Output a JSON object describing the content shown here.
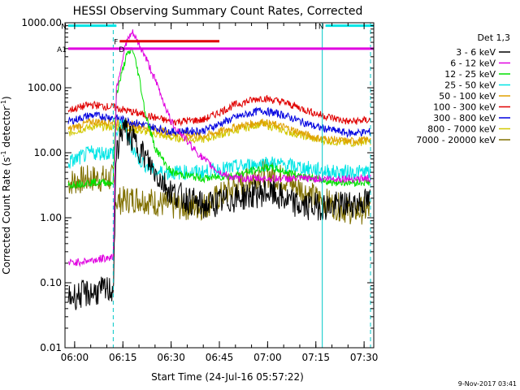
{
  "chart_data": {
    "type": "line",
    "title": "HESSI Observing Summary Count Rates, Corrected",
    "xlabel": "Start Time (24-Jul-16 05:57:22)",
    "ylabel_main": "Corrected Count Rate (s",
    "ylabel_sup": "-1",
    "ylabel_mid": " detector",
    "ylabel_end": ")",
    "yscale": "log",
    "ylim": [
      0.01,
      1000
    ],
    "xlim_minutes": [
      "05:57",
      "07:33"
    ],
    "x_ticks": [
      "06:00",
      "06:15",
      "06:30",
      "06:45",
      "07:00",
      "07:15",
      "07:30"
    ],
    "y_ticks": [
      "0.01",
      "0.10",
      "1.00",
      "10.00",
      "100.00",
      "1000.00"
    ],
    "grid": false,
    "legend_title": "Det 1,3",
    "legend_position": "right",
    "timestamp": "9-Nov-2017 03:41",
    "flags": [
      {
        "label": "N",
        "color": "#00e5e5",
        "start": "05:58",
        "end": "06:13",
        "level": 900
      },
      {
        "label": "N",
        "color": "#00e5e5",
        "start": "07:18",
        "end": "07:33",
        "level": 900
      },
      {
        "label": "F",
        "color": "#e00000",
        "start": "06:14",
        "end": "06:45",
        "level": 520
      },
      {
        "label": "A1",
        "color": "#e000e0",
        "start": "05:58",
        "end": "07:33",
        "level": 400
      },
      {
        "label": "D",
        "color": "#e000e0",
        "start": "06:16",
        "end": "06:18",
        "level": 400
      }
    ],
    "vlines": [
      {
        "time": "05:57",
        "color": "#00c8c8",
        "style": "dashed"
      },
      {
        "time": "06:12",
        "color": "#00c8c8",
        "style": "dashed"
      },
      {
        "time": "07:17",
        "color": "#00c8c8",
        "style": "solid"
      },
      {
        "time": "07:32",
        "color": "#00c8c8",
        "style": "dashed"
      }
    ],
    "series": [
      {
        "name": "3 - 6 keV",
        "color": "#000000",
        "x": [
          "05:58",
          "06:05",
          "06:12",
          "06:13",
          "06:15",
          "06:20",
          "06:25",
          "06:30",
          "06:40",
          "06:50",
          "07:00",
          "07:10",
          "07:20",
          "07:32"
        ],
        "y": [
          0.06,
          0.07,
          0.08,
          10,
          25,
          12,
          5,
          2.5,
          1.5,
          2,
          2.5,
          1.5,
          1.5,
          1.8
        ]
      },
      {
        "name": "6 - 12 keV",
        "color": "#e000e0",
        "x": [
          "05:58",
          "06:05",
          "06:12",
          "06:13",
          "06:16",
          "06:18",
          "06:22",
          "06:26",
          "06:30",
          "06:35",
          "06:40",
          "06:45",
          "06:50",
          "07:00",
          "07:10",
          "07:20",
          "07:32"
        ],
        "y": [
          0.2,
          0.22,
          0.25,
          100,
          500,
          700,
          300,
          100,
          30,
          15,
          8,
          5,
          4,
          4,
          4,
          4,
          4
        ]
      },
      {
        "name": "12 - 25 keV",
        "color": "#00e000",
        "x": [
          "05:58",
          "06:05",
          "06:12",
          "06:13",
          "06:16",
          "06:18",
          "06:20",
          "06:22",
          "06:25",
          "06:30",
          "06:40",
          "06:50",
          "07:00",
          "07:10",
          "07:20",
          "07:32"
        ],
        "y": [
          3.2,
          3.5,
          3.5,
          80,
          300,
          400,
          150,
          40,
          12,
          5,
          4,
          4.5,
          6,
          4.5,
          3.5,
          3.5
        ]
      },
      {
        "name": "25 - 50 keV",
        "color": "#00e5e5",
        "x": [
          "05:58",
          "06:05",
          "06:12",
          "06:13",
          "06:15",
          "06:17",
          "06:20",
          "06:25",
          "06:30",
          "06:40",
          "06:50",
          "07:00",
          "07:10",
          "07:20",
          "07:32"
        ],
        "y": [
          7,
          10,
          10,
          20,
          30,
          15,
          8,
          5,
          5,
          5,
          6,
          7,
          6,
          5,
          5
        ]
      },
      {
        "name": "50 - 100 keV",
        "color": "#e0a000",
        "x": [
          "05:58",
          "06:05",
          "06:12",
          "06:20",
          "06:30",
          "06:40",
          "06:50",
          "06:58",
          "07:05",
          "07:15",
          "07:25",
          "07:32"
        ],
        "y": [
          23,
          30,
          30,
          26,
          20,
          18,
          25,
          30,
          25,
          17,
          15,
          16
        ]
      },
      {
        "name": "100 - 300 keV",
        "color": "#e00000",
        "x": [
          "05:58",
          "06:05",
          "06:12",
          "06:20",
          "06:30",
          "06:40",
          "06:50",
          "06:58",
          "07:05",
          "07:15",
          "07:25",
          "07:32"
        ],
        "y": [
          45,
          55,
          50,
          40,
          30,
          32,
          55,
          70,
          60,
          40,
          30,
          32
        ]
      },
      {
        "name": "300 - 800 keV",
        "color": "#0000e0",
        "x": [
          "05:58",
          "06:05",
          "06:12",
          "06:20",
          "06:30",
          "06:40",
          "06:50",
          "06:58",
          "07:05",
          "07:15",
          "07:25",
          "07:32"
        ],
        "y": [
          30,
          38,
          35,
          28,
          21,
          22,
          35,
          45,
          38,
          25,
          20,
          21
        ]
      },
      {
        "name": "800 - 7000 keV",
        "color": "#d2c800",
        "x": [
          "05:58",
          "06:05",
          "06:12",
          "06:20",
          "06:30",
          "06:40",
          "06:50",
          "06:58",
          "07:05",
          "07:15",
          "07:25",
          "07:32"
        ],
        "y": [
          20,
          25,
          25,
          22,
          17,
          16,
          22,
          28,
          22,
          16,
          14,
          15
        ]
      },
      {
        "name": "7000 - 20000 keV",
        "color": "#807000",
        "x": [
          "05:58",
          "06:05",
          "06:12",
          "06:13",
          "06:20",
          "06:30",
          "06:40",
          "06:50",
          "06:58",
          "07:05",
          "07:15",
          "07:25",
          "07:32"
        ],
        "y": [
          3.5,
          4,
          4,
          1.8,
          2,
          1.5,
          1.5,
          3,
          5,
          4,
          2,
          1.3,
          1.3
        ]
      }
    ]
  }
}
